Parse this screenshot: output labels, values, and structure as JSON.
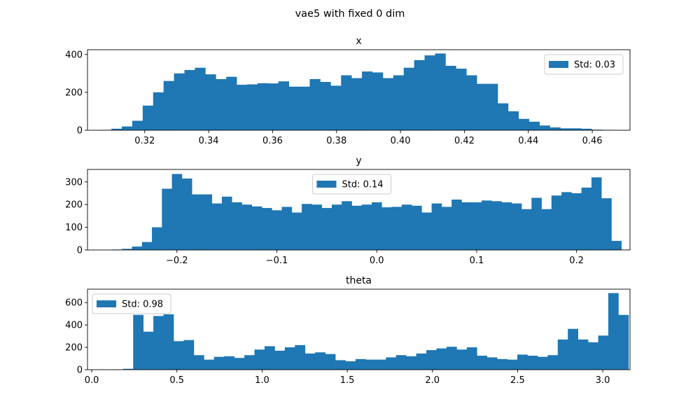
{
  "figure": {
    "suptitle": "vae5 with fixed 0 dim"
  },
  "colors": {
    "bar": "#1f77b4",
    "axes": "#000000",
    "background": "#ffffff"
  },
  "chart_data": [
    {
      "type": "bar",
      "title": "x",
      "xlabel": "",
      "ylabel": "",
      "grid": false,
      "xlim": [
        0.3021,
        0.4718
      ],
      "ylim": [
        0,
        425
      ],
      "xticks": [
        0.32,
        0.34,
        0.36,
        0.38,
        0.4,
        0.42,
        0.44,
        0.46
      ],
      "xtick_labels": [
        "0.32",
        "0.34",
        "0.36",
        "0.38",
        "0.40",
        "0.42",
        "0.44",
        "0.46"
      ],
      "yticks": [
        0,
        200,
        400
      ],
      "ytick_labels": [
        "0",
        "200",
        "400"
      ],
      "legend": {
        "label": "Std: 0.03",
        "placement": "upper right"
      },
      "bin_start": 0.3063,
      "bin_width": 0.003266,
      "values": [
        2,
        8,
        20,
        50,
        130,
        200,
        260,
        300,
        318,
        330,
        295,
        270,
        282,
        240,
        242,
        248,
        247,
        258,
        230,
        230,
        270,
        255,
        235,
        290,
        275,
        310,
        305,
        275,
        290,
        330,
        370,
        395,
        405,
        340,
        325,
        290,
        245,
        245,
        142,
        100,
        60,
        45,
        25,
        15,
        10,
        10,
        8,
        3,
        2,
        1
      ]
    },
    {
      "type": "bar",
      "title": "y",
      "xlabel": "",
      "ylabel": "",
      "grid": false,
      "xlim": [
        -0.2895,
        0.2535
      ],
      "ylim": [
        0,
        355
      ],
      "xticks": [
        -0.2,
        -0.1,
        0.0,
        0.1,
        0.2
      ],
      "xtick_labels": [
        "−0.2",
        "−0.1",
        "0.0",
        "0.1",
        "0.2"
      ],
      "yticks": [
        0,
        100,
        200,
        300
      ],
      "ytick_labels": [
        "0",
        "100",
        "200",
        "300"
      ],
      "legend": {
        "label": "Std: 0.14",
        "placement": "upper center"
      },
      "bin_start": -0.265,
      "bin_width": 0.009998,
      "values": [
        2,
        5,
        15,
        35,
        100,
        270,
        335,
        315,
        245,
        245,
        205,
        235,
        210,
        200,
        192,
        185,
        175,
        190,
        165,
        203,
        200,
        185,
        200,
        215,
        195,
        200,
        210,
        188,
        190,
        200,
        195,
        165,
        205,
        190,
        222,
        210,
        210,
        218,
        215,
        210,
        205,
        180,
        230,
        180,
        240,
        255,
        250,
        275,
        320,
        228,
        40
      ]
    },
    {
      "type": "bar",
      "title": "theta",
      "xlabel": "",
      "ylabel": "",
      "grid": false,
      "xlim": [
        -0.025,
        3.16
      ],
      "ylim": [
        0,
        720
      ],
      "xticks": [
        0.0,
        0.5,
        1.0,
        1.5,
        2.0,
        2.5,
        3.0
      ],
      "xtick_labels": [
        "0.0",
        "0.5",
        "1.0",
        "1.5",
        "2.0",
        "2.5",
        "3.0"
      ],
      "yticks": [
        0,
        200,
        400,
        600
      ],
      "ytick_labels": [
        "0",
        "200",
        "400",
        "600"
      ],
      "legend": {
        "label": "Std: 0.98",
        "placement": "upper left"
      },
      "bin_start": 0.1244,
      "bin_width": 0.05935,
      "values": [
        2,
        8,
        490,
        340,
        480,
        495,
        255,
        265,
        130,
        90,
        115,
        120,
        105,
        130,
        180,
        210,
        170,
        200,
        220,
        145,
        155,
        140,
        85,
        75,
        95,
        90,
        90,
        110,
        130,
        120,
        145,
        175,
        190,
        205,
        180,
        200,
        125,
        110,
        95,
        90,
        135,
        125,
        115,
        130,
        270,
        365,
        270,
        245,
        305,
        685,
        490
      ]
    }
  ]
}
